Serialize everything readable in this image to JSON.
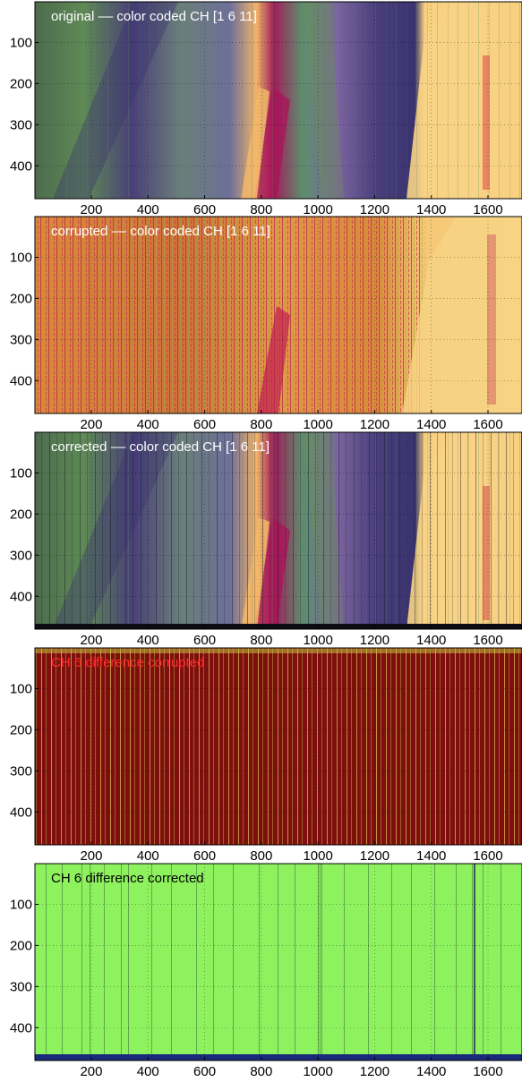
{
  "chart_data": [
    {
      "type": "heatmap",
      "title": "original –– color coded CH [1 6 11]",
      "xlim": [
        1,
        1720
      ],
      "ylim": [
        1,
        480
      ],
      "xticks": [
        200,
        400,
        600,
        800,
        1000,
        1200,
        1400,
        1600
      ],
      "yticks": [
        100,
        200,
        300,
        400
      ],
      "grid": true,
      "style": "scene",
      "title_color": "#ffffff"
    },
    {
      "type": "heatmap",
      "title": "corrupted –– color coded CH [1 6 11]",
      "xlim": [
        1,
        1720
      ],
      "ylim": [
        1,
        480
      ],
      "xticks": [
        200,
        400,
        600,
        800,
        1000,
        1200,
        1400,
        1600
      ],
      "yticks": [
        100,
        200,
        300,
        400
      ],
      "grid": true,
      "style": "corrupted",
      "title_color": "#ffffff"
    },
    {
      "type": "heatmap",
      "title": "corrected –– color coded CH [1 6 11]",
      "xlim": [
        1,
        1720
      ],
      "ylim": [
        1,
        480
      ],
      "xticks": [
        200,
        400,
        600,
        800,
        1000,
        1200,
        1400,
        1600
      ],
      "yticks": [
        100,
        200,
        300,
        400
      ],
      "grid": true,
      "style": "corrected",
      "title_color": "#ffffff"
    },
    {
      "type": "heatmap",
      "title": "CH 6 difference corrupted",
      "xlim": [
        1,
        1720
      ],
      "ylim": [
        1,
        480
      ],
      "xticks": [
        200,
        400,
        600,
        800,
        1000,
        1200,
        1400,
        1600
      ],
      "yticks": [
        100,
        200,
        300,
        400
      ],
      "grid": true,
      "style": "diff-corrupted",
      "title_color": "#ff2a2a"
    },
    {
      "type": "heatmap",
      "title": "CH 6 difference corrected",
      "xlim": [
        1,
        1720
      ],
      "ylim": [
        1,
        480
      ],
      "xticks": [
        200,
        400,
        600,
        800,
        1000,
        1200,
        1400,
        1600
      ],
      "yticks": [
        100,
        200,
        300,
        400
      ],
      "grid": true,
      "style": "diff-corrected",
      "title_color": "#000000"
    }
  ]
}
